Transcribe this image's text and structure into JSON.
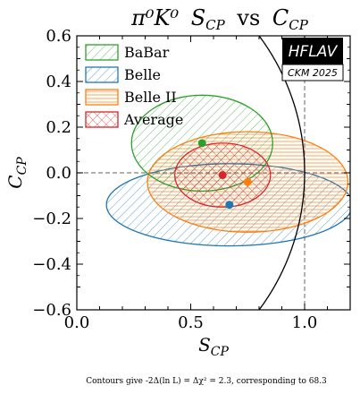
{
  "chart_data": {
    "type": "scatter",
    "title": "π⁰K⁰ S_CP vs C_CP",
    "title_parts": {
      "main": "π⁰K⁰",
      "x": "S",
      "x_sub": "CP",
      "vs": "vs",
      "y": "C",
      "y_sub": "CP"
    },
    "xlabel": "S_CP",
    "ylabel": "C_CP",
    "xlim": [
      0.0,
      1.2
    ],
    "ylim": [
      -0.6,
      0.6
    ],
    "x_ticks": [
      0.0,
      0.5,
      1.0
    ],
    "x_tick_labels": [
      "0.0",
      "0.5",
      "1.0"
    ],
    "y_ticks": [
      -0.6,
      -0.4,
      -0.2,
      0.0,
      0.2,
      0.4,
      0.6
    ],
    "y_tick_labels": [
      "−0.6",
      "−0.4",
      "−0.2",
      "0.0",
      "0.2",
      "0.4",
      "0.6"
    ],
    "legend_position": "top-left",
    "reference_lines": {
      "vertical_x": 1.0,
      "horizontal_y": 0.0,
      "style": "dashed",
      "color": "#808080"
    },
    "physical_boundary": {
      "shape": "unit-circle S²+C²=1",
      "color": "#000000"
    },
    "series": [
      {
        "name": "BaBar",
        "color": "#2ca02c",
        "hatch": "diagonal-down",
        "center": [
          0.55,
          0.13
        ],
        "half_width": [
          0.31,
          0.21
        ]
      },
      {
        "name": "Belle",
        "color": "#1f77b4",
        "hatch": "diagonal-down",
        "center": [
          0.67,
          -0.14
        ],
        "half_width": [
          0.54,
          0.18
        ]
      },
      {
        "name": "Belle II",
        "color": "#ff7f0e",
        "hatch": "horizontal",
        "center": [
          0.75,
          -0.04
        ],
        "half_width": [
          0.44,
          0.22
        ]
      },
      {
        "name": "Average",
        "color": "#d62728",
        "hatch": "cross",
        "center": [
          0.64,
          -0.01
        ],
        "half_width": [
          0.21,
          0.14
        ]
      }
    ]
  },
  "badge": {
    "main": "HFLAV",
    "sub": "CKM 2025"
  },
  "footnote": "Contours give -2Δ(ln L) = Δχ² = 2.3, corresponding to 68.3"
}
